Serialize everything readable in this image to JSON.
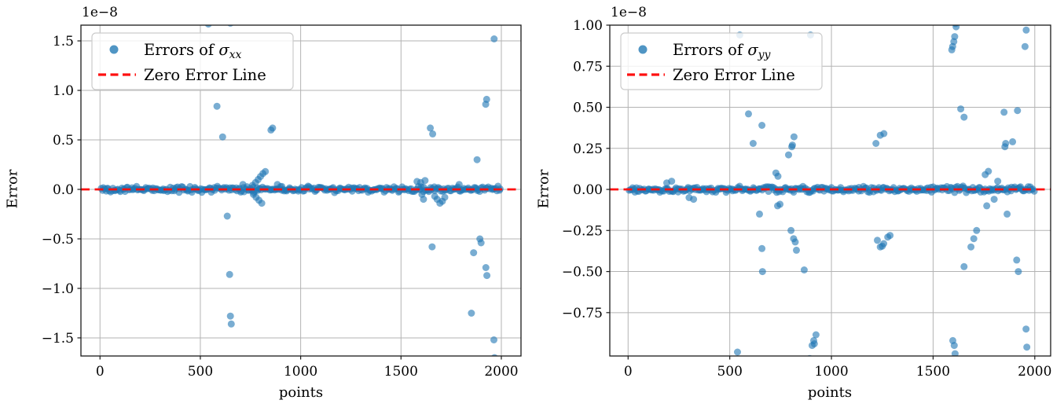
{
  "figure": {
    "background": "#ffffff",
    "description": "Two side-by-side scatter plots of stress-component errors versus point index, each with a dense near-zero band and a red dashed zero-error reference line."
  },
  "colors": {
    "scatter": "#1f77b4",
    "zero_line": "#fe1010",
    "grid": "#b3b3b3",
    "spine": "#1a1a1a",
    "tick": "#1a1a1a",
    "text": "#000000",
    "legend_border": "#cccccc",
    "legend_bg": "rgba(255,255,255,0.82)"
  },
  "chart_data": [
    {
      "type": "scatter",
      "offset_text": "1e−8",
      "xlabel": "points",
      "ylabel": "Error",
      "grid": true,
      "legend_position": "upper left",
      "xlim": [
        -95,
        2098
      ],
      "ylim": [
        -1.683,
        1.659
      ],
      "y_unit": "1e-8",
      "xticks": [
        {
          "v": 0,
          "label": "0"
        },
        {
          "v": 500,
          "label": "500"
        },
        {
          "v": 1000,
          "label": "1000"
        },
        {
          "v": 1500,
          "label": "1500"
        },
        {
          "v": 2000,
          "label": "2000"
        }
      ],
      "yticks": [
        {
          "v": 1.5,
          "label": "1.5"
        },
        {
          "v": 1.0,
          "label": "1.0"
        },
        {
          "v": 0.5,
          "label": "0.5"
        },
        {
          "v": 0.0,
          "label": "0.0"
        },
        {
          "v": -0.5,
          "label": "−0.5"
        },
        {
          "v": -1.0,
          "label": "−1.0"
        },
        {
          "v": -1.5,
          "label": "−1.5"
        }
      ],
      "legend": [
        {
          "marker": "dot",
          "prefix": "Errors of ",
          "symbol": "σ",
          "subscript": "xx"
        },
        {
          "marker": "dash",
          "label": "Zero Error Line"
        }
      ],
      "zero_line_y": 0,
      "band": {
        "note": "dense band of near-zero errors spanning all points",
        "count": 330,
        "x_range": [
          3,
          2000
        ],
        "amplitude": 0.035,
        "seed": 42
      },
      "outliers": [
        [
          540,
          1.67
        ],
        [
          650,
          1.68
        ],
        [
          1977,
          1.7
        ],
        [
          583,
          0.84
        ],
        [
          611,
          0.53
        ],
        [
          852,
          0.6
        ],
        [
          860,
          0.62
        ],
        [
          1964,
          1.52
        ],
        [
          1922,
          0.86
        ],
        [
          1927,
          0.91
        ],
        [
          1646,
          0.62
        ],
        [
          1658,
          0.56
        ],
        [
          1879,
          0.3
        ],
        [
          712,
          0.05
        ],
        [
          760,
          0.04
        ],
        [
          775,
          0.07
        ],
        [
          788,
          0.1
        ],
        [
          800,
          0.13
        ],
        [
          812,
          0.16
        ],
        [
          824,
          0.18
        ],
        [
          884,
          0.05
        ],
        [
          906,
          0.03
        ],
        [
          764,
          -0.05
        ],
        [
          778,
          -0.08
        ],
        [
          792,
          -0.11
        ],
        [
          806,
          -0.14
        ],
        [
          1580,
          0.08
        ],
        [
          1598,
          0.07
        ],
        [
          1620,
          0.09
        ],
        [
          1790,
          0.05
        ],
        [
          1604,
          -0.05
        ],
        [
          1612,
          -0.1
        ],
        [
          1668,
          -0.07
        ],
        [
          1680,
          -0.1
        ],
        [
          1694,
          -0.14
        ],
        [
          1706,
          -0.12
        ],
        [
          1718,
          -0.08
        ],
        [
          634,
          -0.27
        ],
        [
          646,
          -0.86
        ],
        [
          650,
          -1.28
        ],
        [
          654,
          -1.36
        ],
        [
          1655,
          -0.58
        ],
        [
          1893,
          -0.5
        ],
        [
          1899,
          -0.54
        ],
        [
          1862,
          -0.64
        ],
        [
          1923,
          -0.79
        ],
        [
          1928,
          -0.87
        ],
        [
          1851,
          -1.25
        ],
        [
          1963,
          -1.52
        ],
        [
          525,
          -1.72
        ],
        [
          1966,
          -1.7
        ]
      ]
    },
    {
      "type": "scatter",
      "offset_text": "1e−8",
      "xlabel": "points",
      "ylabel": "Error",
      "grid": true,
      "legend_position": "upper left",
      "xlim": [
        -90,
        2078
      ],
      "ylim": [
        -1.014,
        1.0
      ],
      "y_unit": "1e-8",
      "xticks": [
        {
          "v": 0,
          "label": "0"
        },
        {
          "v": 500,
          "label": "500"
        },
        {
          "v": 1000,
          "label": "1000"
        },
        {
          "v": 1500,
          "label": "1500"
        },
        {
          "v": 2000,
          "label": "2000"
        }
      ],
      "yticks": [
        {
          "v": 1.0,
          "label": "1.00"
        },
        {
          "v": 0.75,
          "label": "0.75"
        },
        {
          "v": 0.5,
          "label": "0.50"
        },
        {
          "v": 0.25,
          "label": "0.25"
        },
        {
          "v": 0.0,
          "label": "0.00"
        },
        {
          "v": -0.25,
          "label": "−0.25"
        },
        {
          "v": -0.5,
          "label": "−0.50"
        },
        {
          "v": -0.75,
          "label": "−0.75"
        }
      ],
      "legend": [
        {
          "marker": "dot",
          "prefix": "Errors of ",
          "symbol": "σ",
          "subscript": "yy"
        },
        {
          "marker": "dash",
          "label": "Zero Error Line"
        }
      ],
      "zero_line_y": 0,
      "band": {
        "note": "dense band of near-zero errors spanning all points",
        "count": 330,
        "x_range": [
          3,
          2000
        ],
        "amplitude": 0.021,
        "seed": 77
      },
      "outliers": [
        [
          549,
          0.94
        ],
        [
          890,
          1.02
        ],
        [
          897,
          0.94
        ],
        [
          1610,
          1.01
        ],
        [
          1613,
          0.99
        ],
        [
          1606,
          0.93
        ],
        [
          1602,
          0.9
        ],
        [
          1596,
          0.87
        ],
        [
          1592,
          0.85
        ],
        [
          1958,
          0.97
        ],
        [
          1952,
          0.87
        ],
        [
          592,
          0.46
        ],
        [
          658,
          0.39
        ],
        [
          615,
          0.28
        ],
        [
          727,
          0.1
        ],
        [
          737,
          0.08
        ],
        [
          789,
          0.21
        ],
        [
          805,
          0.26
        ],
        [
          808,
          0.27
        ],
        [
          816,
          0.32
        ],
        [
          1219,
          0.28
        ],
        [
          1240,
          0.33
        ],
        [
          1258,
          0.34
        ],
        [
          1636,
          0.49
        ],
        [
          1652,
          0.44
        ],
        [
          1849,
          0.47
        ],
        [
          1915,
          0.48
        ],
        [
          1857,
          0.28
        ],
        [
          1891,
          0.29
        ],
        [
          1853,
          0.26
        ],
        [
          190,
          0.04
        ],
        [
          214,
          0.05
        ],
        [
          300,
          -0.05
        ],
        [
          322,
          -0.06
        ],
        [
          1756,
          0.09
        ],
        [
          1772,
          0.11
        ],
        [
          1818,
          0.05
        ],
        [
          1764,
          -0.1
        ],
        [
          1800,
          -0.06
        ],
        [
          646,
          -0.15
        ],
        [
          658,
          -0.36
        ],
        [
          661,
          -0.5
        ],
        [
          735,
          -0.1
        ],
        [
          747,
          -0.09
        ],
        [
          801,
          -0.25
        ],
        [
          814,
          -0.3
        ],
        [
          822,
          -0.32
        ],
        [
          828,
          -0.37
        ],
        [
          866,
          -0.49
        ],
        [
          1864,
          -0.15
        ],
        [
          1226,
          -0.31
        ],
        [
          1240,
          -0.35
        ],
        [
          1250,
          -0.345
        ],
        [
          1257,
          -0.33
        ],
        [
          1277,
          -0.29
        ],
        [
          1288,
          -0.28
        ],
        [
          1714,
          -0.25
        ],
        [
          1700,
          -0.3
        ],
        [
          1686,
          -0.35
        ],
        [
          1652,
          -0.47
        ],
        [
          1911,
          -0.43
        ],
        [
          1919,
          -0.5
        ],
        [
          905,
          -0.95
        ],
        [
          913,
          -0.92
        ],
        [
          916,
          -0.94
        ],
        [
          924,
          -0.885
        ],
        [
          893,
          -1.03
        ],
        [
          538,
          -0.99
        ],
        [
          1597,
          -0.92
        ],
        [
          1604,
          -0.95
        ],
        [
          1608,
          -1.0
        ],
        [
          1957,
          -0.85
        ],
        [
          1961,
          -0.96
        ]
      ]
    }
  ]
}
